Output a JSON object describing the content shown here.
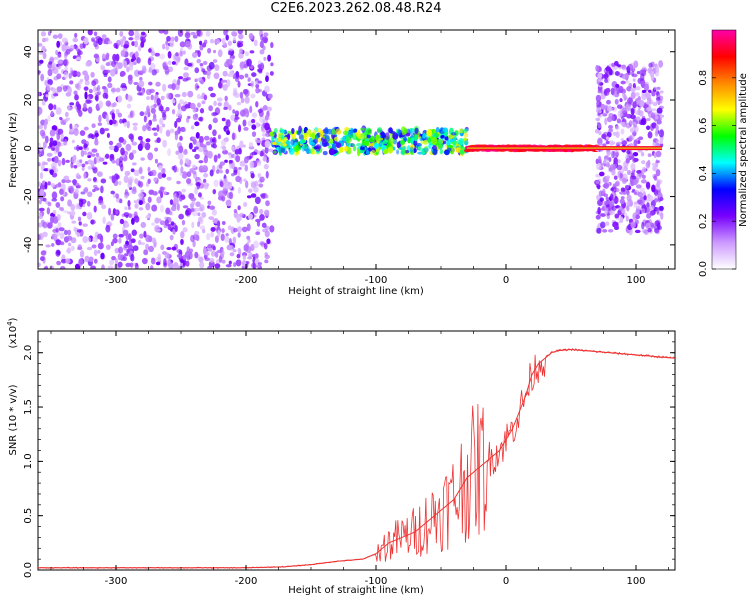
{
  "title": "C2E6.2023.262.08.48.R24",
  "chart_data": [
    {
      "type": "heatmap",
      "xlabel": "Height of straight line (km)",
      "ylabel": "Frequency (Hz)",
      "xlim": [
        -360,
        130
      ],
      "ylim": [
        -50,
        49
      ],
      "x_ticks": [
        -300,
        -200,
        -100,
        0,
        100
      ],
      "x_tick_labels": [
        "-300",
        "-200",
        "-100",
        "0",
        "100"
      ],
      "y_ticks": [
        -40,
        -20,
        0,
        20,
        40
      ],
      "y_tick_labels": [
        "-40",
        "-20",
        "0",
        "20",
        "40"
      ],
      "colorbar": {
        "label": "Normalized spectral amplitude",
        "range": [
          0,
          1
        ],
        "ticks": [
          0.0,
          0.2,
          0.4,
          0.6,
          0.8
        ],
        "tick_labels": [
          "0.0",
          "0.2",
          "0.4",
          "0.6",
          "0.8"
        ],
        "colors": [
          "#ffffff",
          "#cc99ff",
          "#7700ff",
          "#0000ff",
          "#00ffff",
          "#00ff00",
          "#ffff00",
          "#ff8800",
          "#ff0000",
          "#ff00aa"
        ]
      },
      "regions": [
        {
          "x": [
            -360,
            -180
          ],
          "freq": [
            -50,
            49
          ],
          "level": 0.2
        },
        {
          "x": [
            -180,
            -30
          ],
          "freq": [
            -2,
            8
          ],
          "level": 0.45
        },
        {
          "x": [
            -30,
            70
          ],
          "freq": [
            -1,
            1
          ],
          "level": 0.9
        },
        {
          "x": [
            70,
            120
          ],
          "freq": [
            -35,
            35
          ],
          "level": 0.2
        }
      ]
    },
    {
      "type": "line",
      "xlabel": "Height of straight line (km)",
      "ylabel": "SNR (10 * v/v)",
      "y_multiplier": "(x10",
      "y_multiplier_exp": "4",
      "y_multiplier_close": ")",
      "xlim": [
        -360,
        130
      ],
      "ylim": [
        0,
        2.2
      ],
      "x_ticks": [
        -300,
        -200,
        -100,
        0,
        100
      ],
      "x_tick_labels": [
        "-300",
        "-200",
        "-100",
        "0",
        "100"
      ],
      "y_ticks": [
        0.0,
        0.5,
        1.0,
        1.5,
        2.0
      ],
      "y_tick_labels": [
        "0.0",
        "0.5",
        "1.0",
        "1.5",
        "2.0"
      ],
      "color": "#ee3333",
      "x": [
        -360,
        -200,
        -170,
        -150,
        -130,
        -110,
        -100,
        -90,
        -80,
        -70,
        -60,
        -50,
        -40,
        -30,
        -25,
        -20,
        -15,
        -10,
        -5,
        0,
        5,
        10,
        15,
        20,
        25,
        30,
        35,
        40,
        50,
        60,
        70,
        80,
        90,
        100,
        110,
        120,
        130
      ],
      "y": [
        0.02,
        0.02,
        0.03,
        0.05,
        0.08,
        0.1,
        0.15,
        0.25,
        0.3,
        0.35,
        0.45,
        0.55,
        0.65,
        0.85,
        0.9,
        0.95,
        1.0,
        1.05,
        1.1,
        1.2,
        1.3,
        1.45,
        1.6,
        1.8,
        1.9,
        1.95,
        2.0,
        2.02,
        2.03,
        2.02,
        2.01,
        2.0,
        1.99,
        1.98,
        1.97,
        1.96,
        1.95
      ]
    }
  ]
}
